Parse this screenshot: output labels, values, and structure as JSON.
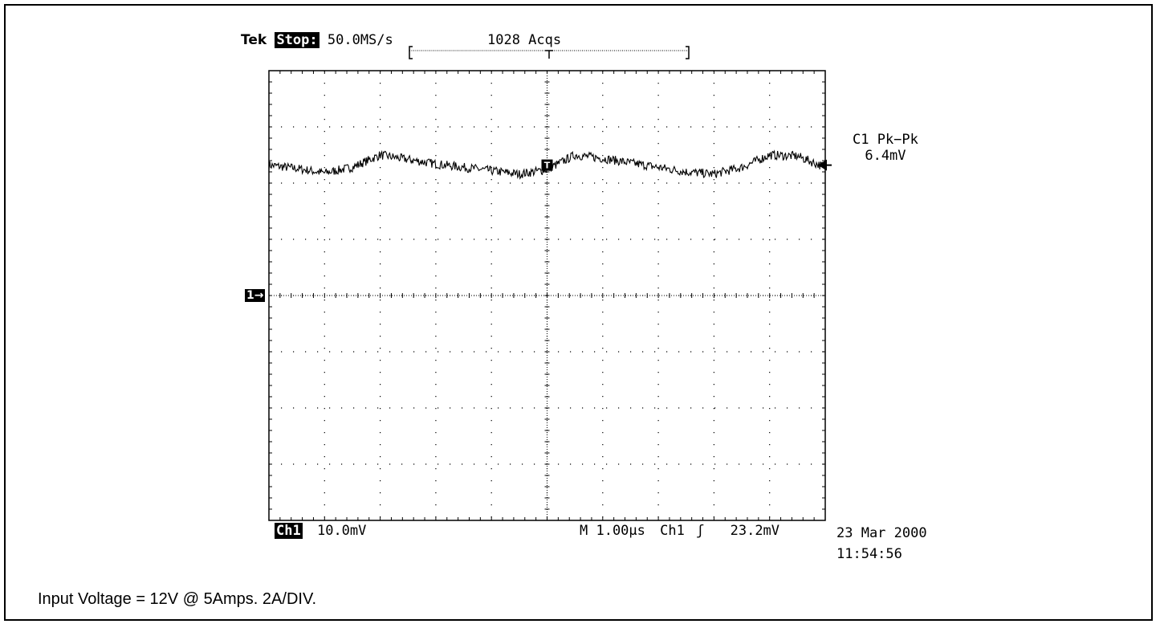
{
  "header": {
    "brand": "Tek",
    "run_state": "Stop:",
    "sample_rate": "50.0MS/s",
    "acquisitions": "1028 Acqs"
  },
  "measurement": {
    "label": "C1 Pk−Pk",
    "value": "6.4mV"
  },
  "channel_marker": "1→",
  "footer": {
    "channel": "Ch1",
    "scale": "10.0mV",
    "timebase": "M 1.00µs",
    "trigger_source": "Ch1",
    "trigger_slope": "ʃ",
    "trigger_level": "23.2mV",
    "date": "23 Mar 2000",
    "time": "11:54:56"
  },
  "caption": "Input Voltage = 12V @ 5Amps.  2A/DIV.",
  "chart_data": {
    "type": "line",
    "title": "",
    "xlabel": "",
    "ylabel": "",
    "x_divisions": 10,
    "y_divisions": 8,
    "x_unit": "µs",
    "y_unit": "mV",
    "x_per_div": 1.0,
    "y_per_div": 10.0,
    "xlim": [
      0,
      10
    ],
    "ylim": [
      -40,
      40
    ],
    "grid": true,
    "series": [
      {
        "x": [
          0,
          0.5,
          1.0,
          1.5,
          2.0,
          2.5,
          3.0,
          3.5,
          4.0,
          4.5,
          5.0,
          5.5,
          6.0,
          6.5,
          7.0,
          7.5,
          8.0,
          8.5,
          9.0,
          9.5,
          10.0
        ],
        "values": [
          23.2,
          22.6,
          21.8,
          22.8,
          25.0,
          24.2,
          23.4,
          22.8,
          22.2,
          21.6,
          22.4,
          25.0,
          24.4,
          23.6,
          22.8,
          22.0,
          21.6,
          22.8,
          25.0,
          24.8,
          22.8
        ]
      }
    ],
    "noise_mV": 0.8,
    "ground_level_mV": 0,
    "trigger_position_div": 5
  },
  "colors": {
    "trace": "#000000",
    "grid": "#000000",
    "background": "#ffffff"
  }
}
